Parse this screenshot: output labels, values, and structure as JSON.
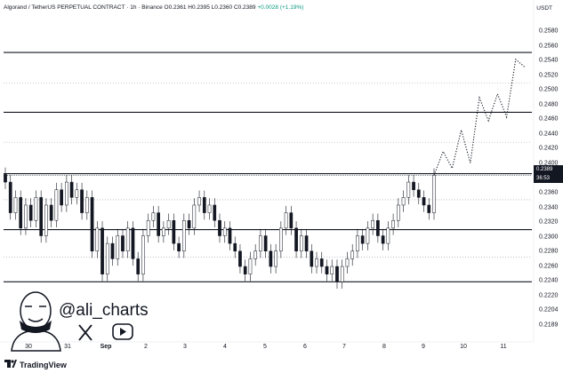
{
  "header": {
    "symbol": "Algorand / TetherUS PERPETUAL CONTRACT · 1h · Binance",
    "ohlc": "O0.2361 H0.2395 L0.2360 C0.2389",
    "change": "+0.0028 (+1.19%)"
  },
  "currency": "USDT",
  "price_tag": {
    "price": "0.2389",
    "countdown": "36:53"
  },
  "watermark": {
    "handle": "@ali_charts"
  },
  "brand": "TradingView",
  "icons": [
    "x-icon",
    "youtube-icon",
    "tradingview-logo-icon",
    "avatar-icon"
  ],
  "colors": {
    "up": "#089981",
    "down": "#131722",
    "line": "#131722",
    "projection": "#131722"
  },
  "chart_data": {
    "type": "candlestick",
    "x_ticks": [
      "30",
      "31",
      "Sep",
      "2",
      "3",
      "4",
      "5",
      "6",
      "7",
      "8",
      "9",
      "10",
      "11"
    ],
    "y_ticks": [
      "0.2580",
      "0.2560",
      "0.2540",
      "0.2520",
      "0.2500",
      "0.2480",
      "0.2460",
      "0.2440",
      "0.2420",
      "0.2400",
      "0.2380",
      "0.2360",
      "0.2340",
      "0.2320",
      "0.2300",
      "0.2280",
      "0.2260",
      "0.2240",
      "0.2220",
      "0.2204",
      "0.2189"
    ],
    "solid_levels": [
      0.225,
      0.2318,
      0.2391,
      0.2471,
      0.2549
    ],
    "dotted_levels": [
      0.2282,
      0.2357,
      0.2432,
      0.2509
    ],
    "current_price": 0.2389,
    "close_path": [
      0.238,
      0.234,
      0.236,
      0.232,
      0.235,
      0.233,
      0.236,
      0.231,
      0.235,
      0.233,
      0.237,
      0.235,
      0.238,
      0.236,
      0.237,
      0.234,
      0.236,
      0.229,
      0.232,
      0.226,
      0.23,
      0.228,
      0.231,
      0.229,
      0.232,
      0.228,
      0.226,
      0.231,
      0.233,
      0.234,
      0.231,
      0.232,
      0.233,
      0.23,
      0.229,
      0.233,
      0.232,
      0.235,
      0.236,
      0.234,
      0.235,
      0.233,
      0.231,
      0.232,
      0.23,
      0.229,
      0.227,
      0.226,
      0.228,
      0.229,
      0.231,
      0.229,
      0.227,
      0.229,
      0.232,
      0.234,
      0.232,
      0.229,
      0.231,
      0.229,
      0.227,
      0.228,
      0.227,
      0.226,
      0.227,
      0.225,
      0.227,
      0.228,
      0.229,
      0.231,
      0.23,
      0.232,
      0.233,
      0.231,
      0.23,
      0.232,
      0.233,
      0.235,
      0.236,
      0.238,
      0.237,
      0.236,
      0.235,
      0.234,
      0.2389
    ],
    "projection": [
      0.2389,
      0.242,
      0.2398,
      0.2448,
      0.2405,
      0.249,
      0.246,
      0.2495,
      0.2465,
      0.254,
      0.253
    ]
  }
}
